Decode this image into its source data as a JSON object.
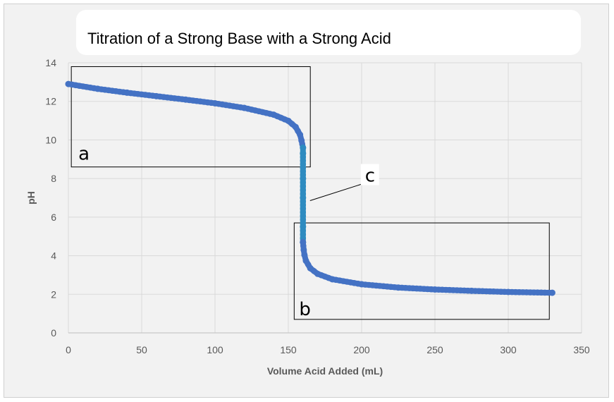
{
  "chart_data": {
    "type": "line",
    "title": "Titration of a Strong Base with a Strong Acid",
    "xlabel": "Volume Acid Added (mL)",
    "ylabel": "pH",
    "xlim": [
      0,
      350
    ],
    "ylim": [
      0,
      14
    ],
    "xticks": [
      0,
      50,
      100,
      150,
      200,
      250,
      300,
      350
    ],
    "yticks": [
      0,
      2,
      4,
      6,
      8,
      10,
      12,
      14
    ],
    "grid": true,
    "series": [
      {
        "segment": "before-equivalence",
        "color": "#4472C4",
        "x": [
          0,
          20,
          40,
          60,
          80,
          100,
          120,
          140,
          150,
          155,
          158,
          159,
          160
        ],
        "y": [
          12.9,
          12.65,
          12.45,
          12.27,
          12.09,
          11.9,
          11.66,
          11.31,
          10.99,
          10.67,
          10.27,
          9.97,
          9.6
        ]
      },
      {
        "segment": "equivalence-jump",
        "color": "#2E8BC0",
        "x": [
          160,
          160,
          160,
          160,
          160,
          160
        ],
        "y": [
          9.6,
          9.3,
          8.0,
          7.0,
          5.5,
          4.7
        ]
      },
      {
        "segment": "after-equivalence",
        "color": "#4472C4",
        "x": [
          160,
          160.5,
          161,
          162,
          165,
          170,
          180,
          200,
          225,
          250,
          275,
          300,
          330
        ],
        "y": [
          4.7,
          4.3,
          4.04,
          3.74,
          3.35,
          3.06,
          2.78,
          2.52,
          2.35,
          2.25,
          2.18,
          2.12,
          2.08
        ]
      }
    ],
    "annotations": [
      {
        "label": "a",
        "region_x": [
          2,
          165
        ],
        "region_y": [
          8.6,
          13.8
        ]
      },
      {
        "label": "b",
        "region_x": [
          154,
          328
        ],
        "region_y": [
          0.7,
          5.7
        ]
      },
      {
        "label": "c",
        "points_to": [
          160,
          7
        ]
      }
    ]
  }
}
